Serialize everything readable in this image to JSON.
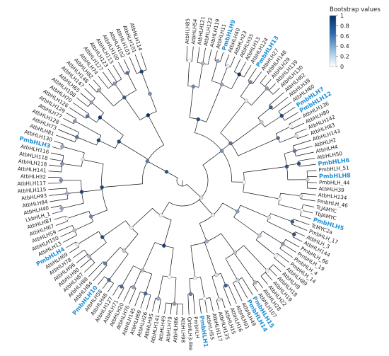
{
  "legend": {
    "title": "Bootstrap values",
    "ticks": [
      "1",
      "0.8",
      "0.6",
      "0.4",
      "0.2",
      "0"
    ],
    "color_high": "#08306b",
    "color_low": "#ffffff"
  },
  "colors": {
    "highlight": "#1e90d6",
    "text": "#222222",
    "branch": "#000000"
  },
  "leaves": [
    {
      "label": "AtbHLH85",
      "hl": false
    },
    {
      "label": "AtbHLH54",
      "hl": false
    },
    {
      "label": "AtbHLH121",
      "hl": false
    },
    {
      "label": "AtbHLH122",
      "hl": false
    },
    {
      "label": "AtbHLH119",
      "hl": false
    },
    {
      "label": "AtbHLH11",
      "hl": false
    },
    {
      "label": "PmbHLH9",
      "hl": true
    },
    {
      "label": "AtbHLH40",
      "hl": false
    },
    {
      "label": "AtbHLH23",
      "hl": false
    },
    {
      "label": "AtbHLH35",
      "hl": false
    },
    {
      "label": "AtbHLH13",
      "hl": false
    },
    {
      "label": "AtbHLH124",
      "hl": false
    },
    {
      "label": "PmbHLH13",
      "hl": true
    },
    {
      "label": "AtbHLH27",
      "hl": false
    },
    {
      "label": "AtbHLH148",
      "hl": false
    },
    {
      "label": "AtbHLH29",
      "hl": false
    },
    {
      "label": "AtbHLH139",
      "hl": false
    },
    {
      "label": "AtbHLH130",
      "hl": false
    },
    {
      "label": "AtbHLH62",
      "hl": false
    },
    {
      "label": "AtbHLH38",
      "hl": false
    },
    {
      "label": "AtbHLH60",
      "hl": false
    },
    {
      "label": "PmbHLH7",
      "hl": true
    },
    {
      "label": "PmbHLH12",
      "hl": true
    },
    {
      "label": "AtbHLH136",
      "hl": false
    },
    {
      "label": "AtbHLH80",
      "hl": false
    },
    {
      "label": "AtbHLH142",
      "hl": false
    },
    {
      "label": "AtbHLH83",
      "hl": false
    },
    {
      "label": "AtbHLH143",
      "hl": false
    },
    {
      "label": "AtbHLH2",
      "hl": false
    },
    {
      "label": "AtbHLH4",
      "hl": false
    },
    {
      "label": "AtbHLH50",
      "hl": false
    },
    {
      "label": "PmbHLH6",
      "hl": true
    },
    {
      "label": "PmbHLH_51",
      "hl": false
    },
    {
      "label": "PmbHLH8",
      "hl": true
    },
    {
      "label": "PmbHLH_44",
      "hl": false
    },
    {
      "label": "AtbHLH39",
      "hl": false
    },
    {
      "label": "AtbHLH134",
      "hl": false
    },
    {
      "label": "PmbHLH_46",
      "hl": false
    },
    {
      "label": "TcJAMYC",
      "hl": false
    },
    {
      "label": "TbJAMYC",
      "hl": false
    },
    {
      "label": "PmbHLH5",
      "hl": true
    },
    {
      "label": "TcMYC2a",
      "hl": false
    },
    {
      "label": "PmbHLH_17",
      "hl": false
    },
    {
      "label": "AtbHLH_3",
      "hl": false
    },
    {
      "label": "AtbHLH144",
      "hl": false
    },
    {
      "label": "PmbHLH_66",
      "hl": false
    },
    {
      "label": "PmbHLH_19",
      "hl": false
    },
    {
      "label": "PmbHLH_4",
      "hl": false
    },
    {
      "label": "PmbHLH_14",
      "hl": false
    },
    {
      "label": "AtbHLH89",
      "hl": false
    },
    {
      "label": "AtbHLH9",
      "hl": false
    },
    {
      "label": "AtbHLH18",
      "hl": false
    },
    {
      "label": "AtbHLH19",
      "hl": false
    },
    {
      "label": "AtbHLH22",
      "hl": false
    },
    {
      "label": "AtbHLH28",
      "hl": false
    },
    {
      "label": "AtbHLH107",
      "hl": false
    },
    {
      "label": "PmbHLH15",
      "hl": true
    },
    {
      "label": "PmbHLH14",
      "hl": true
    },
    {
      "label": "AtbHLH49",
      "hl": false
    },
    {
      "label": "AtbHLH91",
      "hl": false
    },
    {
      "label": "AtbHLH16",
      "hl": false
    },
    {
      "label": "AtbHLH15",
      "hl": false
    },
    {
      "label": "AtbHLH135",
      "hl": false
    },
    {
      "label": "AtbHLH117",
      "hl": false
    },
    {
      "label": "AtbHLH55",
      "hl": false
    },
    {
      "label": "PmbHLH1",
      "hl": true
    },
    {
      "label": "PmbHLH",
      "hl": false
    },
    {
      "label": "QrbHLH3-like",
      "hl": false
    },
    {
      "label": "AtbHLH98",
      "hl": false
    },
    {
      "label": "AtbHLH86",
      "hl": false
    },
    {
      "label": "AtbHLH79",
      "hl": false
    },
    {
      "label": "AtbHLH49",
      "hl": false
    },
    {
      "label": "AtbHLH141",
      "hl": false
    },
    {
      "label": "AtbHLH95",
      "hl": false
    },
    {
      "label": "AtbHLH26",
      "hl": false
    },
    {
      "label": "AtbHLH69",
      "hl": false
    },
    {
      "label": "AtbHLH145",
      "hl": false
    },
    {
      "label": "AtbHLH76",
      "hl": false
    },
    {
      "label": "AtbHLH20",
      "hl": false
    },
    {
      "label": "AtbHLH71",
      "hl": false
    },
    {
      "label": "AtbHLH127",
      "hl": false
    },
    {
      "label": "AtbHLH48",
      "hl": false
    },
    {
      "label": "AtbHLH58",
      "hl": false
    },
    {
      "label": "PmbHLH10",
      "hl": true
    },
    {
      "label": "AtbHLH84",
      "hl": false
    },
    {
      "label": "AtbHLH88",
      "hl": false
    },
    {
      "label": "AtbHLH87",
      "hl": false
    },
    {
      "label": "AtbHLH90",
      "hl": false
    },
    {
      "label": "AtbHLH96",
      "hl": false
    },
    {
      "label": "AtbHLH78",
      "hl": false
    },
    {
      "label": "AtbHLH69",
      "hl": false
    },
    {
      "label": "PmbHLH4",
      "hl": true
    },
    {
      "label": "AtbHLH13",
      "hl": false
    },
    {
      "label": "AtbHLH150",
      "hl": false
    },
    {
      "label": "AtbHLH59",
      "hl": false
    },
    {
      "label": "AtbHLH67",
      "hl": false
    },
    {
      "label": "AtbHLH87",
      "hl": false
    },
    {
      "label": "LkbHLH_1",
      "hl": false
    },
    {
      "label": "AtbHLH40",
      "hl": false
    },
    {
      "label": "AtbHLH84",
      "hl": false
    },
    {
      "label": "AtbHLH93",
      "hl": false
    },
    {
      "label": "AtbHLH115",
      "hl": false
    },
    {
      "label": "AtbHLH117",
      "hl": false
    },
    {
      "label": "AtbHLH32",
      "hl": false
    },
    {
      "label": "AtbHLH141",
      "hl": false
    },
    {
      "label": "AtbHLH118",
      "hl": false
    },
    {
      "label": "AtbHLH118",
      "hl": false
    },
    {
      "label": "AtbHLH116",
      "hl": false
    },
    {
      "label": "PmbHLH3",
      "hl": true
    },
    {
      "label": "AtbHLH130",
      "hl": false
    },
    {
      "label": "AtbHLH81",
      "hl": false
    },
    {
      "label": "AtbHLH73",
      "hl": false
    },
    {
      "label": "AtbHLH128",
      "hl": false
    },
    {
      "label": "AtbHLH77",
      "hl": false
    },
    {
      "label": "AtbHLH129",
      "hl": false
    },
    {
      "label": "AtbHLH126",
      "hl": false
    },
    {
      "label": "AtbHLH70",
      "hl": false
    },
    {
      "label": "AtbHLH108",
      "hl": false
    },
    {
      "label": "AtbHLH65",
      "hl": false
    },
    {
      "label": "AtbHLH147",
      "hl": false
    },
    {
      "label": "AtbHLH148",
      "hl": false
    },
    {
      "label": "AtbHLH82",
      "hl": false
    },
    {
      "label": "AtbHLH74",
      "hl": false
    },
    {
      "label": "AtbHLH127",
      "hl": false
    },
    {
      "label": "AtbHLH123",
      "hl": false
    },
    {
      "label": "AtbHLH113",
      "hl": false
    },
    {
      "label": "AtbHLH100",
      "hl": false
    },
    {
      "label": "AtbHLH102",
      "hl": false
    },
    {
      "label": "AtbHLH103",
      "hl": false
    },
    {
      "label": "AtbHLH101",
      "hl": false
    },
    {
      "label": "AtbHLH114",
      "hl": false
    }
  ]
}
